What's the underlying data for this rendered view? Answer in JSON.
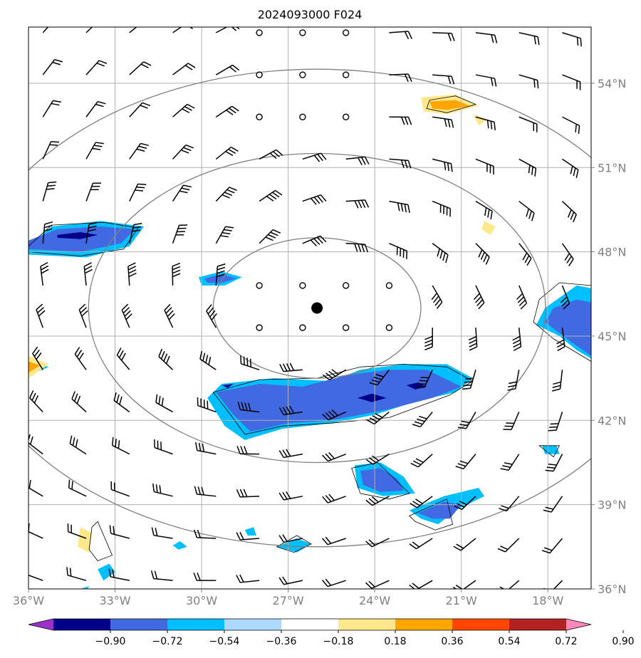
{
  "chart_data": {
    "type": "heatmap",
    "title": "2024093000 F024",
    "map_extent": {
      "lon": [
        -36,
        -16.5
      ],
      "lat": [
        36,
        56
      ]
    },
    "x_ticks": [
      {
        "lon": -36,
        "label": "36°W"
      },
      {
        "lon": -33,
        "label": "33°W"
      },
      {
        "lon": -30,
        "label": "30°W"
      },
      {
        "lon": -27,
        "label": "27°W"
      },
      {
        "lon": -24,
        "label": "24°W"
      },
      {
        "lon": -21,
        "label": "21°W"
      },
      {
        "lon": -18,
        "label": "18°W"
      }
    ],
    "y_ticks": [
      {
        "lat": 36,
        "label": "36°N"
      },
      {
        "lat": 39,
        "label": "39°N"
      },
      {
        "lat": 42,
        "label": "42°N"
      },
      {
        "lat": 45,
        "label": "45°N"
      },
      {
        "lat": 48,
        "label": "48°N"
      },
      {
        "lat": 51,
        "label": "51°N"
      },
      {
        "lat": 54,
        "label": "54°N"
      }
    ],
    "grid": true,
    "center_marker": {
      "lon": -26.0,
      "lat": 46.0
    },
    "range_rings_deg": [
      2.5,
      5.5,
      8.5
    ],
    "colorbar": {
      "orientation": "horizontal",
      "extend": "both",
      "levels": [
        -0.9,
        -0.72,
        -0.54,
        -0.36,
        -0.18,
        0.18,
        0.36,
        0.54,
        0.72,
        0.9
      ],
      "tick_labels": [
        "−0.90",
        "−0.72",
        "−0.54",
        "−0.36",
        "−0.18",
        "0.18",
        "0.36",
        "0.54",
        "0.72",
        "0.90"
      ],
      "colors": [
        "#9932cc",
        "#00008b",
        "#4169e1",
        "#00bfff",
        "#add8ff",
        "#ffffff",
        "#ffe78c",
        "#ffa500",
        "#ff4500",
        "#b22222",
        "#ff88bb"
      ]
    },
    "shaded_regions": [
      {
        "level": -0.36,
        "points": [
          [
            -36,
            48.2
          ],
          [
            -35.2,
            48.9
          ],
          [
            -33.5,
            49.1
          ],
          [
            -32.0,
            48.9
          ],
          [
            -32.5,
            48.2
          ],
          [
            -34.0,
            47.8
          ],
          [
            -36,
            47.9
          ]
        ]
      },
      {
        "level": -0.54,
        "points": [
          [
            -36,
            48.4
          ],
          [
            -35,
            48.8
          ],
          [
            -33.5,
            48.9
          ],
          [
            -32.3,
            48.8
          ],
          [
            -32.8,
            48.3
          ],
          [
            -34.2,
            48.0
          ],
          [
            -36,
            48.1
          ]
        ]
      },
      {
        "level": -0.72,
        "points": [
          [
            -35,
            48.6
          ],
          [
            -34.2,
            48.7
          ],
          [
            -33.6,
            48.6
          ],
          [
            -34.2,
            48.45
          ],
          [
            -35,
            48.5
          ]
        ]
      },
      {
        "level": -0.36,
        "points": [
          [
            -30.1,
            47.1
          ],
          [
            -29.3,
            47.3
          ],
          [
            -28.6,
            47.1
          ],
          [
            -29.2,
            46.8
          ],
          [
            -30.0,
            46.8
          ]
        ]
      },
      {
        "level": -0.54,
        "points": [
          [
            -29.9,
            47.05
          ],
          [
            -29.3,
            47.2
          ],
          [
            -28.8,
            47.05
          ],
          [
            -29.3,
            46.9
          ],
          [
            -29.8,
            46.9
          ]
        ]
      },
      {
        "level": -0.36,
        "points": [
          [
            -36,
            44.1
          ],
          [
            -35.3,
            43.9
          ],
          [
            -36,
            43.6
          ]
        ]
      },
      {
        "level": -0.36,
        "points": [
          [
            -29.8,
            42.8
          ],
          [
            -29.3,
            43.3
          ],
          [
            -27.5,
            43.5
          ],
          [
            -25.5,
            43.4
          ],
          [
            -24.5,
            43.8
          ],
          [
            -23.0,
            44.0
          ],
          [
            -21.5,
            44.0
          ],
          [
            -20.6,
            43.5
          ],
          [
            -21.2,
            43.0
          ],
          [
            -22.5,
            42.7
          ],
          [
            -24,
            42.2
          ],
          [
            -25.5,
            41.9
          ],
          [
            -27.2,
            41.7
          ],
          [
            -28.5,
            41.3
          ],
          [
            -29.2,
            41.8
          ]
        ]
      },
      {
        "level": -0.54,
        "points": [
          [
            -29.5,
            43.0
          ],
          [
            -28,
            43.3
          ],
          [
            -26.5,
            43.2
          ],
          [
            -25.0,
            43.6
          ],
          [
            -23.5,
            43.8
          ],
          [
            -22.2,
            43.8
          ],
          [
            -21.0,
            43.2
          ],
          [
            -22.0,
            42.8
          ],
          [
            -23.5,
            42.4
          ],
          [
            -25.5,
            42.0
          ],
          [
            -27.0,
            41.9
          ],
          [
            -28.3,
            41.6
          ],
          [
            -28.9,
            42.2
          ]
        ]
      },
      {
        "level": -0.72,
        "points": [
          [
            -24.6,
            42.8
          ],
          [
            -24.1,
            42.95
          ],
          [
            -23.6,
            42.8
          ],
          [
            -24.1,
            42.65
          ]
        ]
      },
      {
        "level": -0.72,
        "points": [
          [
            -22.9,
            43.25
          ],
          [
            -22.5,
            43.35
          ],
          [
            -22.2,
            43.2
          ],
          [
            -22.6,
            43.1
          ]
        ]
      },
      {
        "level": -0.72,
        "points": [
          [
            -29.3,
            43.25
          ],
          [
            -28.9,
            43.3
          ],
          [
            -29.1,
            43.15
          ]
        ]
      },
      {
        "level": -0.36,
        "points": [
          [
            -17.0,
            46.8
          ],
          [
            -16.5,
            46.7
          ],
          [
            -16.5,
            44.2
          ],
          [
            -17.0,
            44.5
          ],
          [
            -17.6,
            45.0
          ],
          [
            -18.4,
            45.4
          ],
          [
            -18.1,
            46.0
          ]
        ]
      },
      {
        "level": -0.54,
        "points": [
          [
            -17.0,
            46.3
          ],
          [
            -16.5,
            46.2
          ],
          [
            -16.5,
            44.3
          ],
          [
            -17.2,
            44.8
          ],
          [
            -18.1,
            45.5
          ],
          [
            -17.8,
            46.0
          ]
        ]
      },
      {
        "level": -0.36,
        "points": [
          [
            -24.7,
            40.4
          ],
          [
            -23.8,
            40.5
          ],
          [
            -23.0,
            40.0
          ],
          [
            -22.6,
            39.4
          ],
          [
            -23.7,
            39.3
          ],
          [
            -24.6,
            39.6
          ]
        ]
      },
      {
        "level": -0.54,
        "points": [
          [
            -24.5,
            40.2
          ],
          [
            -23.8,
            40.3
          ],
          [
            -23.2,
            39.9
          ],
          [
            -23.0,
            39.5
          ],
          [
            -23.8,
            39.45
          ],
          [
            -24.4,
            39.7
          ]
        ]
      },
      {
        "level": -0.36,
        "points": [
          [
            -22.8,
            38.8
          ],
          [
            -21.6,
            39.3
          ],
          [
            -20.4,
            39.6
          ],
          [
            -20.2,
            39.3
          ],
          [
            -21.2,
            38.8
          ],
          [
            -21.8,
            38.3
          ],
          [
            -22.4,
            38.5
          ]
        ]
      },
      {
        "level": -0.54,
        "points": [
          [
            -22.5,
            38.7
          ],
          [
            -21.6,
            39.1
          ],
          [
            -21.0,
            39.0
          ],
          [
            -21.4,
            38.5
          ],
          [
            -22.0,
            38.5
          ]
        ]
      },
      {
        "level": -0.36,
        "points": [
          [
            -27.4,
            37.5
          ],
          [
            -26.7,
            37.8
          ],
          [
            -26.2,
            37.6
          ],
          [
            -26.7,
            37.3
          ]
        ]
      },
      {
        "level": -0.36,
        "points": [
          [
            -28.5,
            38.1
          ],
          [
            -28.2,
            38.2
          ],
          [
            -28.1,
            37.9
          ],
          [
            -28.4,
            37.9
          ]
        ]
      },
      {
        "level": -0.36,
        "points": [
          [
            -31.0,
            37.55
          ],
          [
            -30.75,
            37.7
          ],
          [
            -30.5,
            37.5
          ],
          [
            -30.8,
            37.4
          ]
        ]
      },
      {
        "level": -0.36,
        "points": [
          [
            -18.2,
            41.1
          ],
          [
            -17.7,
            41.1
          ],
          [
            -17.6,
            40.8
          ],
          [
            -18.1,
            40.8
          ]
        ]
      },
      {
        "level": -0.36,
        "points": [
          [
            -33.6,
            36.7
          ],
          [
            -33.2,
            36.9
          ],
          [
            -33.0,
            36.6
          ],
          [
            -33.4,
            36.3
          ]
        ]
      },
      {
        "level": -0.36,
        "points": [
          [
            -34.2,
            36.0
          ],
          [
            -33.9,
            36.1
          ],
          [
            -34.0,
            35.9
          ]
        ]
      },
      {
        "level": 0.18,
        "points": [
          [
            -22.4,
            53.5
          ],
          [
            -21.2,
            53.6
          ],
          [
            -20.4,
            53.2
          ],
          [
            -21.5,
            52.9
          ],
          [
            -22.3,
            53.0
          ]
        ]
      },
      {
        "level": 0.36,
        "points": [
          [
            -22.1,
            53.35
          ],
          [
            -21.2,
            53.4
          ],
          [
            -20.7,
            53.2
          ],
          [
            -21.5,
            53.05
          ],
          [
            -22.0,
            53.1
          ]
        ]
      },
      {
        "level": 0.18,
        "points": [
          [
            -20.6,
            52.9
          ],
          [
            -20.1,
            52.7
          ],
          [
            -20.4,
            52.5
          ]
        ]
      },
      {
        "level": 0.18,
        "points": [
          [
            -20.2,
            49.1
          ],
          [
            -19.8,
            48.9
          ],
          [
            -20.0,
            48.6
          ],
          [
            -20.3,
            48.8
          ]
        ]
      },
      {
        "level": 0.18,
        "points": [
          [
            -36,
            44.3
          ],
          [
            -35.3,
            44.0
          ],
          [
            -36,
            43.5
          ]
        ]
      },
      {
        "level": 0.36,
        "points": [
          [
            -36,
            44.1
          ],
          [
            -35.6,
            43.95
          ],
          [
            -36,
            43.7
          ]
        ]
      },
      {
        "level": 0.18,
        "points": [
          [
            -34.2,
            38.2
          ],
          [
            -33.8,
            38.0
          ],
          [
            -33.9,
            37.3
          ],
          [
            -34.3,
            37.5
          ]
        ]
      }
    ],
    "contour_loops": [
      {
        "points": [
          [
            -36,
            48.2
          ],
          [
            -35.2,
            48.95
          ],
          [
            -33.4,
            49.05
          ],
          [
            -32.2,
            48.85
          ],
          [
            -32.7,
            48.1
          ],
          [
            -34.2,
            47.85
          ],
          [
            -36,
            48.0
          ]
        ]
      },
      {
        "points": [
          [
            -29.6,
            43.0
          ],
          [
            -28,
            43.45
          ],
          [
            -26,
            43.5
          ],
          [
            -24.5,
            43.9
          ],
          [
            -23,
            44.0
          ],
          [
            -21.5,
            43.9
          ],
          [
            -20.6,
            43.4
          ],
          [
            -21.4,
            42.9
          ],
          [
            -23.5,
            42.1
          ],
          [
            -25.5,
            41.9
          ],
          [
            -27.2,
            41.8
          ],
          [
            -28.5,
            41.5
          ],
          [
            -29.0,
            42.2
          ]
        ]
      },
      {
        "points": [
          [
            -18.3,
            46.3
          ],
          [
            -17.6,
            46.9
          ],
          [
            -16.5,
            46.8
          ],
          [
            -16.5,
            44.1
          ],
          [
            -17.8,
            44.9
          ],
          [
            -18.5,
            45.5
          ]
        ]
      },
      {
        "points": [
          [
            -24.8,
            40.3
          ],
          [
            -23.9,
            40.5
          ],
          [
            -22.8,
            39.4
          ],
          [
            -23.5,
            39.2
          ],
          [
            -24.5,
            39.4
          ]
        ]
      },
      {
        "points": [
          [
            -22.8,
            38.6
          ],
          [
            -21.5,
            39.2
          ],
          [
            -21.3,
            38.3
          ],
          [
            -21.9,
            38.1
          ],
          [
            -22.6,
            38.4
          ]
        ]
      },
      {
        "points": [
          [
            -22.1,
            53.4
          ],
          [
            -21.2,
            53.55
          ],
          [
            -20.5,
            53.25
          ],
          [
            -21.5,
            52.95
          ],
          [
            -22.2,
            53.1
          ]
        ]
      },
      {
        "points": [
          [
            -27.4,
            37.5
          ],
          [
            -26.7,
            37.9
          ],
          [
            -26.2,
            37.6
          ],
          [
            -26.8,
            37.3
          ]
        ]
      },
      {
        "points": [
          [
            -18.3,
            41.1
          ],
          [
            -17.6,
            41.1
          ],
          [
            -17.8,
            40.7
          ]
        ]
      },
      {
        "points": [
          [
            -33.8,
            38.2
          ],
          [
            -33.6,
            38.4
          ],
          [
            -33.1,
            37.2
          ],
          [
            -33.6,
            37.0
          ],
          [
            -33.9,
            37.4
          ]
        ]
      }
    ]
  }
}
